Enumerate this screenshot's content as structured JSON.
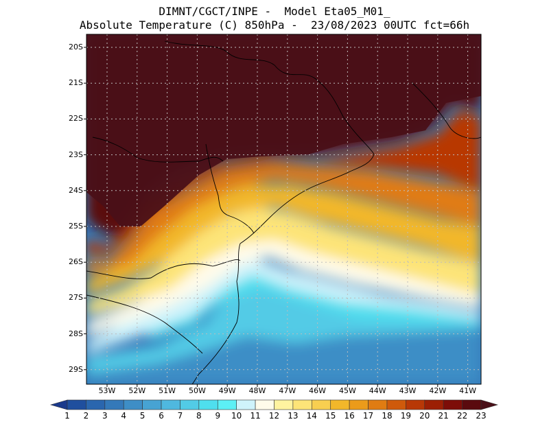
{
  "header": {
    "line1": "DIMNT/CGCT/INPE -  Model Eta05_M01_",
    "line2": "Absolute Temperature (C) 850hPa -  23/08/2023 00UTC fct=66h"
  },
  "map": {
    "lat_labels": [
      "20S",
      "21S",
      "22S",
      "23S",
      "24S",
      "25S",
      "26S",
      "27S",
      "28S",
      "29S"
    ],
    "lon_labels": [
      "53W",
      "52W",
      "51W",
      "50W",
      "49W",
      "48W",
      "47W",
      "46W",
      "45W",
      "44W",
      "43W",
      "42W",
      "41W"
    ]
  },
  "colorbar": {
    "labels": [
      "1",
      "2",
      "3",
      "4",
      "5",
      "6",
      "7",
      "8",
      "9",
      "10",
      "11",
      "12",
      "13",
      "14",
      "15",
      "16",
      "17",
      "18",
      "19",
      "20",
      "21",
      "22",
      "23"
    ],
    "colors": [
      "#1a3a8c",
      "#1f4f9e",
      "#2a66ae",
      "#3479b9",
      "#3e8ec6",
      "#47a3d3",
      "#4fb8df",
      "#52cbe6",
      "#4fdfee",
      "#5cf0f5",
      "#cff3fb",
      "#fffbea",
      "#fff3a0",
      "#fde478",
      "#f8cf50",
      "#f2b72a",
      "#eb9b1a",
      "#e07c12",
      "#cf5a0b",
      "#b83806",
      "#9c1f04",
      "#7d0d08",
      "#5a0a0e",
      "#4a1018"
    ]
  }
}
